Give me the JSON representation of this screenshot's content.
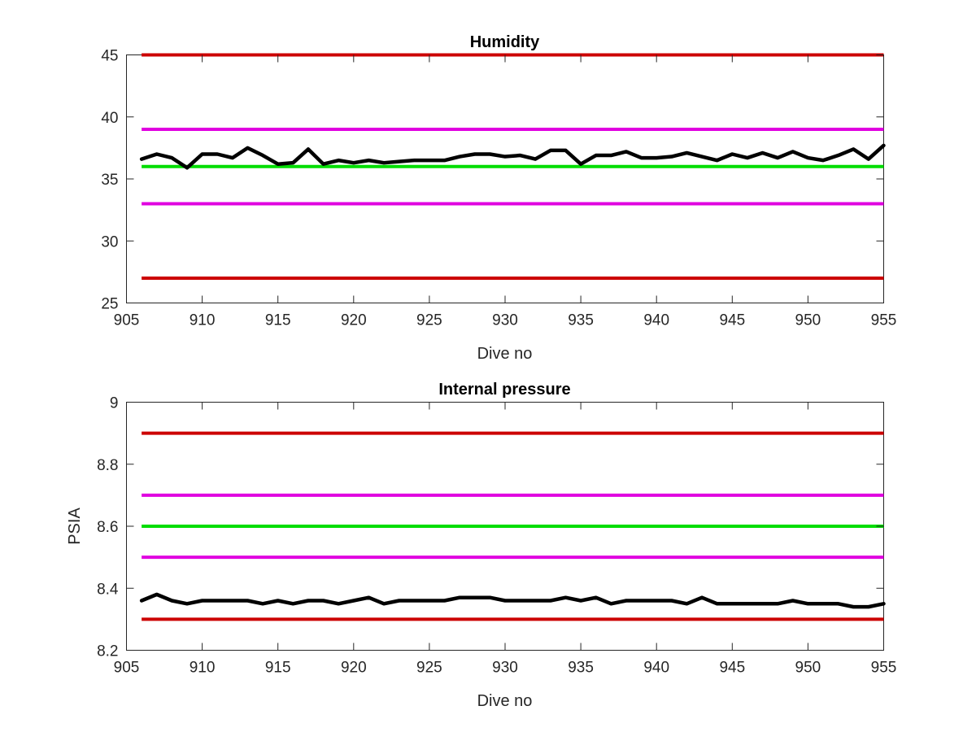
{
  "colors": {
    "red_limit": "#cc0000",
    "magenta_limit": "#e000e0",
    "green_target": "#00dd00",
    "data_line": "#000000",
    "axis": "#262626"
  },
  "chart_data": [
    {
      "type": "line",
      "title": "Humidity",
      "xlabel": "Dive no",
      "ylabel": "",
      "xlim": [
        905,
        955
      ],
      "ylim": [
        25,
        45
      ],
      "x_ticks": [
        "905",
        "910",
        "915",
        "920",
        "925",
        "930",
        "935",
        "940",
        "945",
        "950",
        "955"
      ],
      "y_ticks": [
        "25",
        "30",
        "35",
        "40",
        "45"
      ],
      "grid": false,
      "reference_lines": [
        {
          "y": 45,
          "color": "red"
        },
        {
          "y": 39,
          "color": "magenta"
        },
        {
          "y": 36,
          "color": "green"
        },
        {
          "y": 33,
          "color": "magenta"
        },
        {
          "y": 27,
          "color": "red"
        }
      ],
      "series": [
        {
          "x": [
            906,
            907,
            908,
            909,
            910,
            911,
            912,
            913,
            914,
            915,
            916,
            917,
            918,
            919,
            920,
            921,
            922,
            923,
            924,
            925,
            926,
            927,
            928,
            929,
            930,
            931,
            932,
            933,
            934,
            935,
            936,
            937,
            938,
            939,
            940,
            941,
            942,
            943,
            944,
            945,
            946,
            947,
            948,
            949,
            950,
            951,
            952,
            953,
            954,
            955
          ],
          "values": [
            36.6,
            37.0,
            36.7,
            35.9,
            37.0,
            37.0,
            36.7,
            37.5,
            36.9,
            36.2,
            36.3,
            37.4,
            36.2,
            36.5,
            36.3,
            36.5,
            36.3,
            36.4,
            36.5,
            36.5,
            36.5,
            36.8,
            37.0,
            37.0,
            36.8,
            36.9,
            36.6,
            37.3,
            37.3,
            36.2,
            36.9,
            36.9,
            37.2,
            36.7,
            36.7,
            36.8,
            37.1,
            36.8,
            36.5,
            37.0,
            36.7,
            37.1,
            36.7,
            37.2,
            36.7,
            36.5,
            36.9,
            37.4,
            36.6,
            37.7
          ]
        }
      ]
    },
    {
      "type": "line",
      "title": "Internal pressure",
      "xlabel": "Dive no",
      "ylabel": "PSIA",
      "xlim": [
        905,
        955
      ],
      "ylim": [
        8.2,
        9.0
      ],
      "x_ticks": [
        "905",
        "910",
        "915",
        "920",
        "925",
        "930",
        "935",
        "940",
        "945",
        "950",
        "955"
      ],
      "y_ticks": [
        "8.2",
        "8.4",
        "8.6",
        "8.8",
        "9"
      ],
      "grid": false,
      "reference_lines": [
        {
          "y": 8.9,
          "color": "red"
        },
        {
          "y": 8.7,
          "color": "magenta"
        },
        {
          "y": 8.6,
          "color": "green"
        },
        {
          "y": 8.5,
          "color": "magenta"
        },
        {
          "y": 8.3,
          "color": "red"
        }
      ],
      "series": [
        {
          "x": [
            906,
            907,
            908,
            909,
            910,
            911,
            912,
            913,
            914,
            915,
            916,
            917,
            918,
            919,
            920,
            921,
            922,
            923,
            924,
            925,
            926,
            927,
            928,
            929,
            930,
            931,
            932,
            933,
            934,
            935,
            936,
            937,
            938,
            939,
            940,
            941,
            942,
            943,
            944,
            945,
            946,
            947,
            948,
            949,
            950,
            951,
            952,
            953,
            954,
            955
          ],
          "values": [
            8.36,
            8.38,
            8.36,
            8.35,
            8.36,
            8.36,
            8.36,
            8.36,
            8.35,
            8.36,
            8.35,
            8.36,
            8.36,
            8.35,
            8.36,
            8.37,
            8.35,
            8.36,
            8.36,
            8.36,
            8.36,
            8.37,
            8.37,
            8.37,
            8.36,
            8.36,
            8.36,
            8.36,
            8.37,
            8.36,
            8.37,
            8.35,
            8.36,
            8.36,
            8.36,
            8.36,
            8.35,
            8.37,
            8.35,
            8.35,
            8.35,
            8.35,
            8.35,
            8.36,
            8.35,
            8.35,
            8.35,
            8.34,
            8.34,
            8.35
          ]
        }
      ]
    }
  ]
}
